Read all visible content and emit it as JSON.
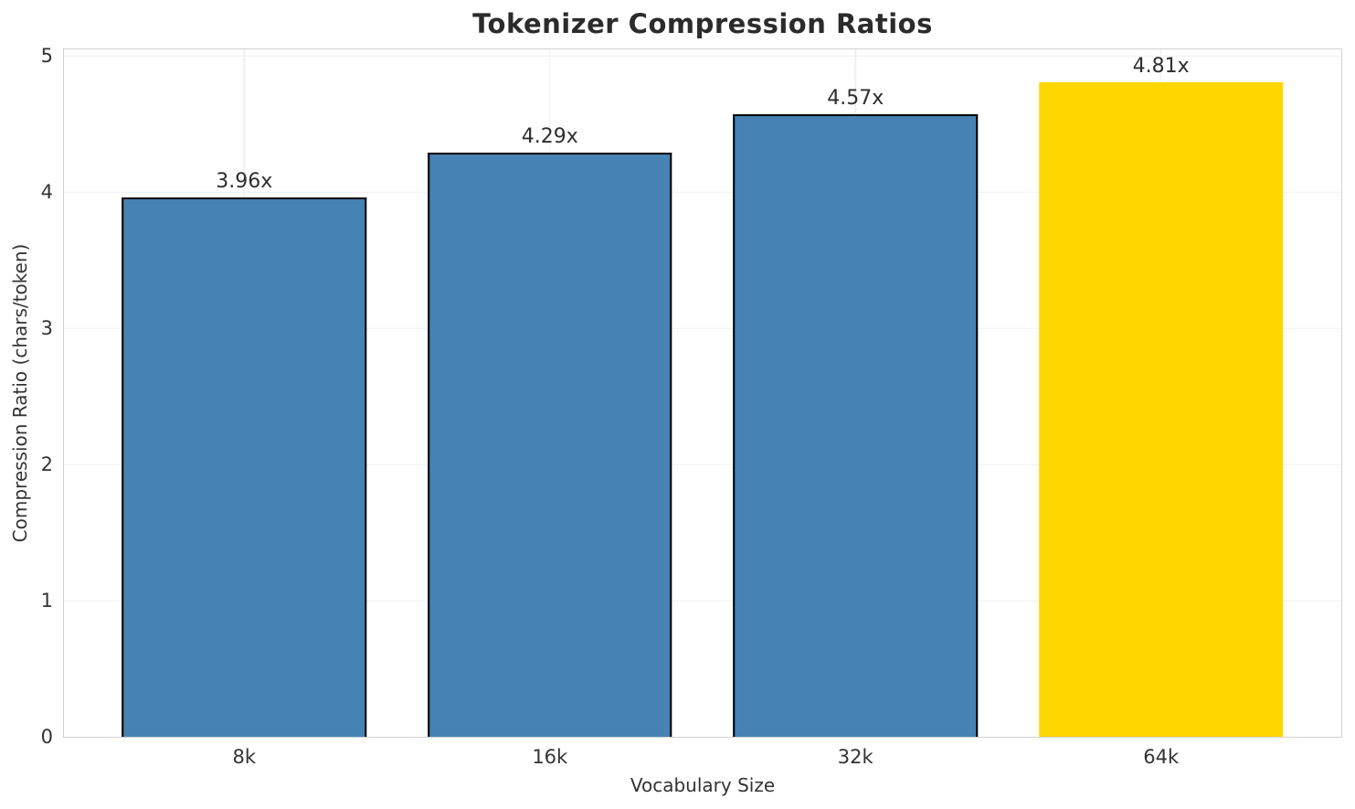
{
  "chart_data": {
    "type": "bar",
    "title": "Tokenizer Compression Ratios",
    "xlabel": "Vocabulary Size",
    "ylabel": "Compression Ratio (chars/token)",
    "categories": [
      "8k",
      "16k",
      "32k",
      "64k"
    ],
    "values": [
      3.96,
      4.29,
      4.57,
      4.81
    ],
    "bar_labels": [
      "3.96x",
      "4.29x",
      "4.57x",
      "4.81x"
    ],
    "y_ticks": [
      0,
      1,
      2,
      3,
      4,
      5
    ],
    "ylim": [
      0,
      5.05
    ],
    "grid": "both",
    "legend_position": "none",
    "highlight_index": 3,
    "colors": {
      "bar_default": "#4682B4",
      "bar_highlight": "#FFD700",
      "bar_edge": "#000000",
      "grid": "#efefef",
      "spine": "#d2d2d2",
      "title_text": "#2b2b2b",
      "label_text": "#333333"
    }
  }
}
